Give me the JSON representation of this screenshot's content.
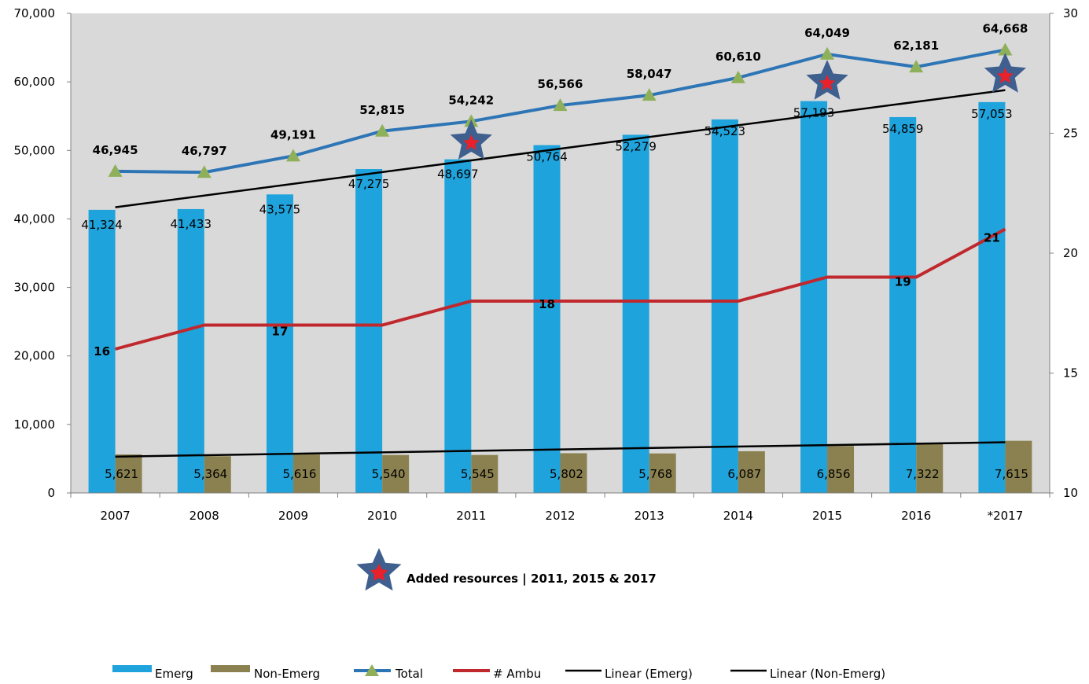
{
  "chart_data": {
    "type": "bar",
    "categories": [
      "2007",
      "2008",
      "2009",
      "2010",
      "2011",
      "2012",
      "2013",
      "2014",
      "2015",
      "2016",
      "*2017"
    ],
    "series": [
      {
        "name": "Emerg",
        "type": "bar",
        "axis": "left",
        "color": "#1fa3dc",
        "values": [
          41324,
          41433,
          43575,
          47275,
          48697,
          50764,
          52279,
          54523,
          57193,
          54859,
          57053
        ],
        "labels": [
          "41,324",
          "41,433",
          "43,575",
          "47,275",
          "48,697",
          "50,764",
          "52,279",
          "54,523",
          "57,193",
          "54,859",
          "57,053"
        ]
      },
      {
        "name": "Non-Emerg",
        "type": "bar",
        "axis": "left",
        "color": "#8b8150",
        "values": [
          5621,
          5364,
          5616,
          5540,
          5545,
          5802,
          5768,
          6087,
          6856,
          7322,
          7615
        ],
        "labels": [
          "5,621",
          "5,364",
          "5,616",
          "5,540",
          "5,545",
          "5,802",
          "5,768",
          "6,087",
          "6,856",
          "7,322",
          "7,615"
        ]
      },
      {
        "name": "Total",
        "type": "line",
        "axis": "left",
        "color": "#2e75b6",
        "marker": "triangle",
        "marker_color": "#8fb05a",
        "values": [
          46945,
          46797,
          49191,
          52815,
          54242,
          56566,
          58047,
          60610,
          64049,
          62181,
          64668
        ],
        "labels": [
          "46,945",
          "46,797",
          "49,191",
          "52,815",
          "54,242",
          "56,566",
          "58,047",
          "60,610",
          "64,049",
          "62,181",
          "64,668"
        ]
      },
      {
        "name": "# Ambu",
        "type": "line",
        "axis": "right",
        "color": "#c0282d",
        "values": [
          16,
          17,
          17,
          17,
          18,
          18,
          18,
          18,
          19,
          19,
          21
        ],
        "labels": [
          "16",
          "",
          "17",
          "",
          "",
          "18",
          "",
          "",
          "",
          "19",
          "21"
        ]
      },
      {
        "name": "Linear (Emerg)",
        "type": "trendline",
        "axis": "left",
        "color": "#000000",
        "start": 41700,
        "end": 58800
      },
      {
        "name": "Linear (Non-Emerg)",
        "type": "trendline",
        "axis": "left",
        "color": "#000000",
        "start": 5300,
        "end": 7400
      }
    ],
    "y_left": {
      "ylim": [
        0,
        70000
      ],
      "ticks": [
        "0",
        "10,000",
        "20,000",
        "30,000",
        "40,000",
        "50,000",
        "60,000",
        "70,000"
      ]
    },
    "y_right": {
      "ylim": [
        10,
        30
      ],
      "ticks": [
        "10",
        "15",
        "20",
        "25",
        "30"
      ]
    },
    "plot_background": "#d9d9d9",
    "grid": false,
    "legend_position": "bottom",
    "annotation": {
      "text": "Added resources | 2011, 2015 & 2017",
      "marked_years": [
        "2011",
        "2015",
        "*2017"
      ],
      "star_outer_color": "#3f5f8f",
      "star_inner_color": "#e8212b"
    }
  }
}
